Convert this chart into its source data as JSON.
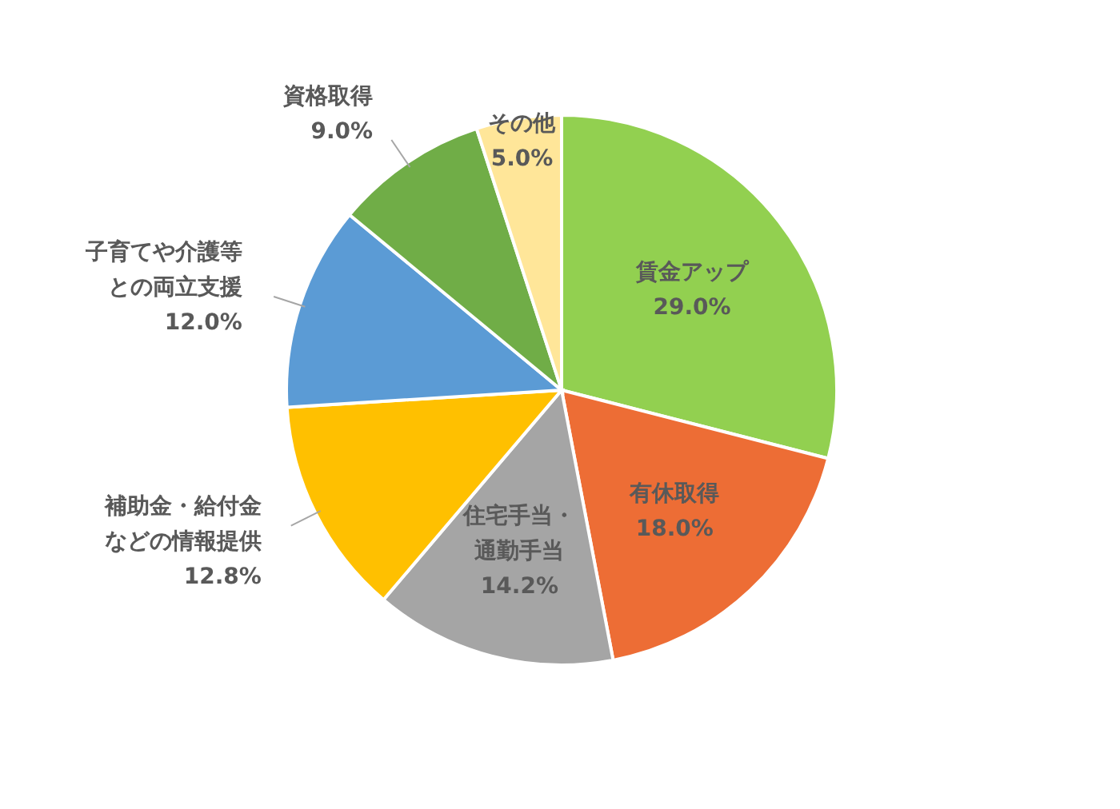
{
  "chart_data": {
    "type": "pie",
    "categories": [
      "賃金アップ",
      "有休取得",
      "住宅手当・通勤手当",
      "補助金・給付金などの情報提供",
      "子育てや介護等との両立支援",
      "資格取得",
      "その他"
    ],
    "values": [
      29.0,
      18.0,
      14.2,
      12.8,
      12.0,
      9.0,
      5.0
    ],
    "colors": [
      "#92d050",
      "#ed6d35",
      "#a5a5a5",
      "#ffc000",
      "#5b9bd5",
      "#70ad47",
      "#ffe699"
    ],
    "value_labels": [
      "29.0%",
      "18.0%",
      "14.2%",
      "12.8%",
      "12.0%",
      "9.0%",
      "5.0%"
    ]
  }
}
